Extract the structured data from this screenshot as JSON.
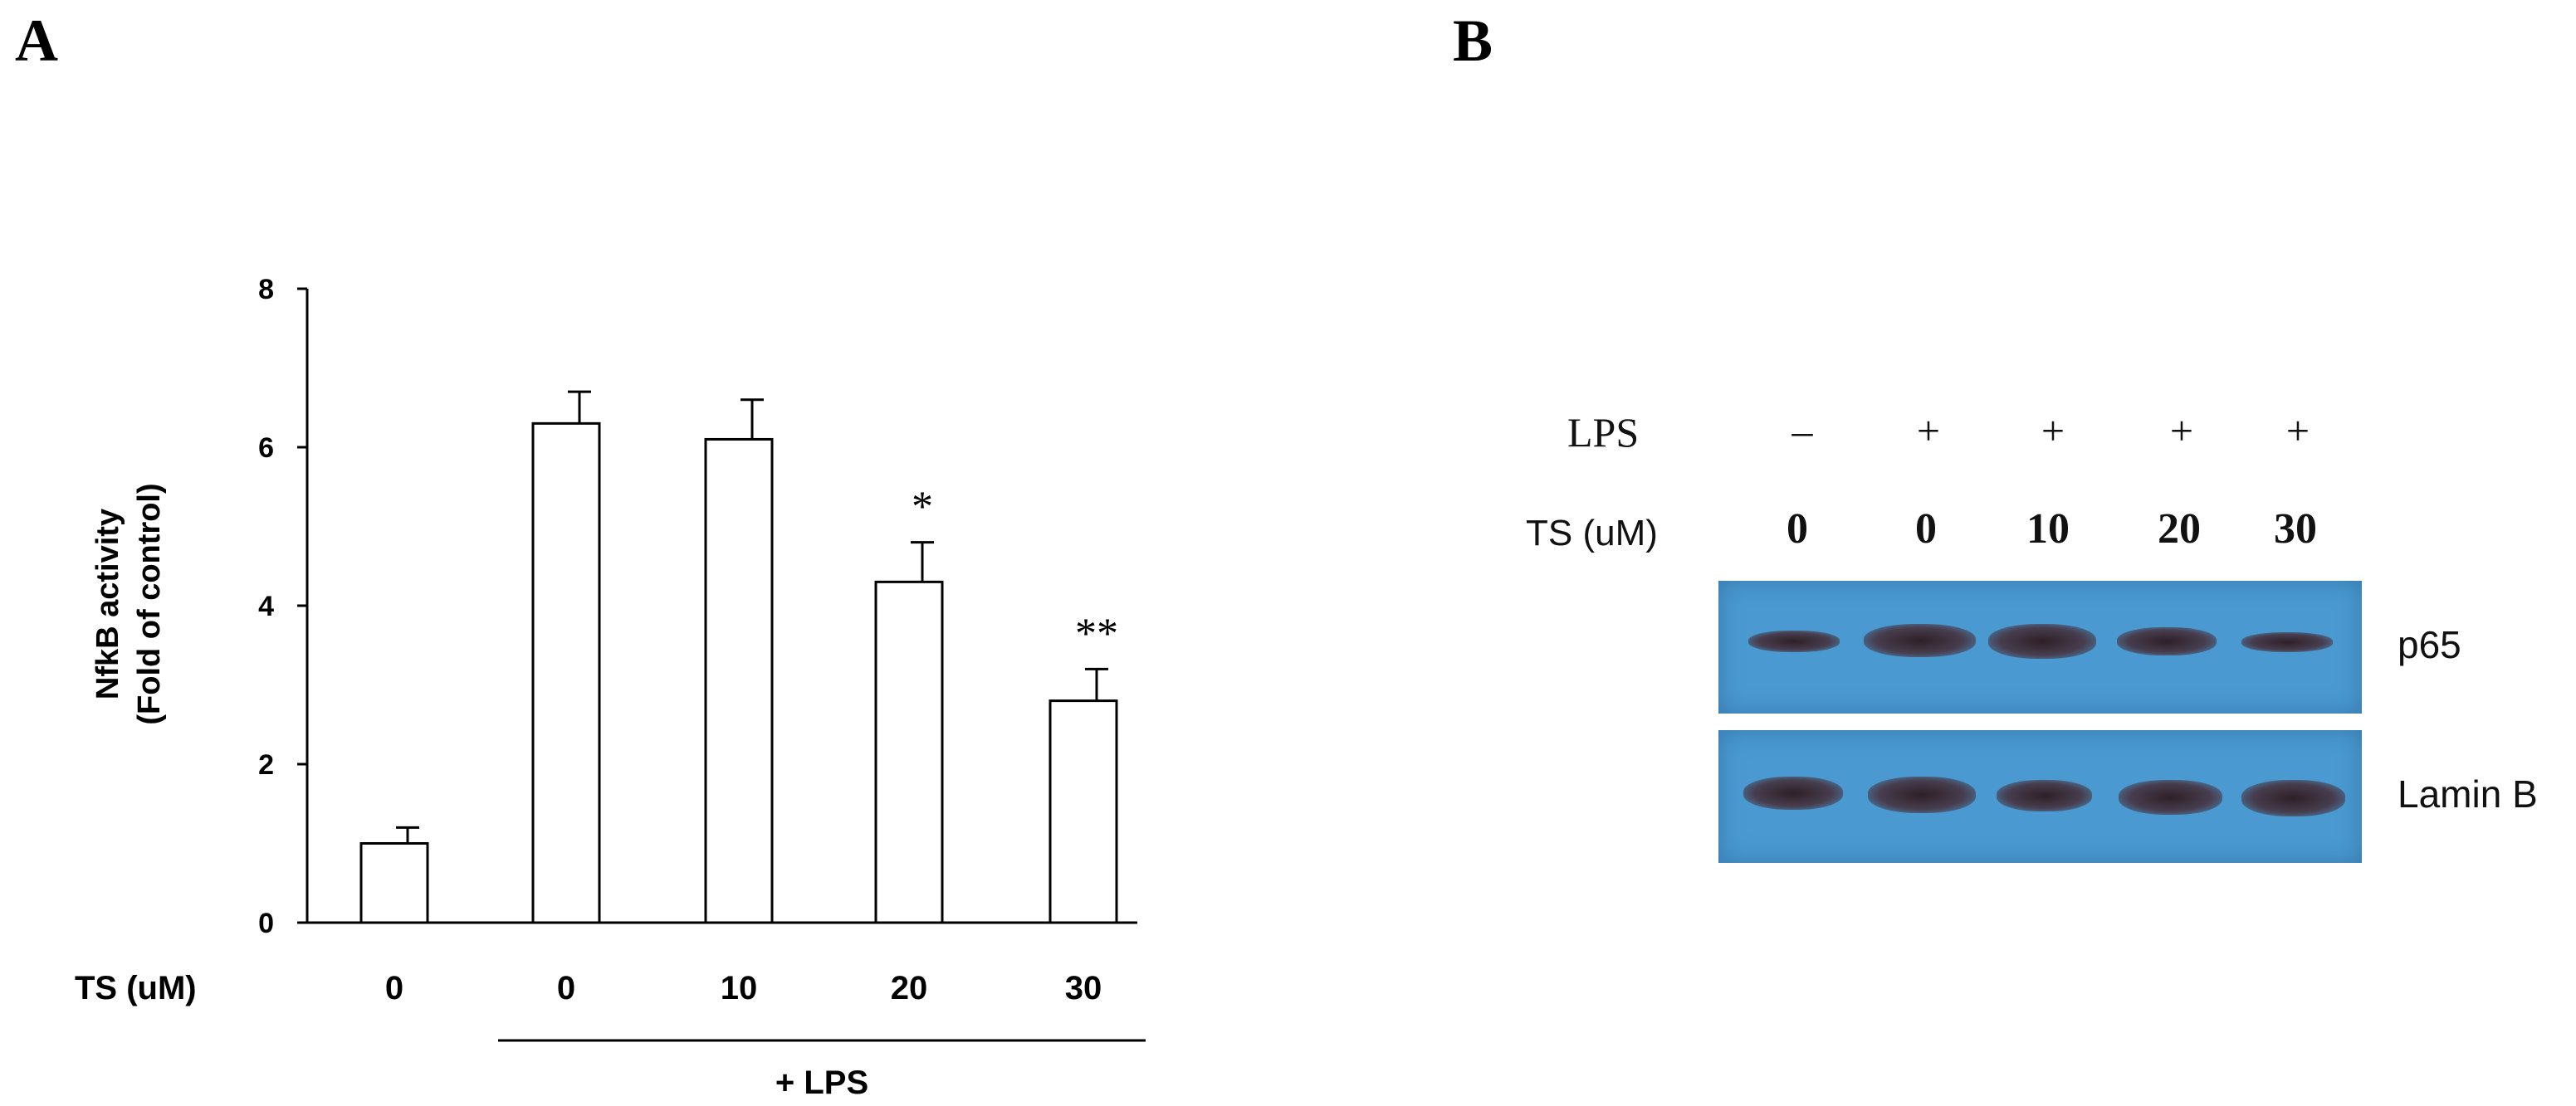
{
  "panels": {
    "a_label": "A",
    "b_label": "B"
  },
  "chart_data": {
    "type": "bar",
    "categories": [
      "0",
      "0",
      "10",
      "20",
      "30"
    ],
    "values": [
      1.0,
      6.3,
      6.1,
      4.3,
      2.8
    ],
    "errors": [
      0.2,
      0.4,
      0.5,
      0.5,
      0.4
    ],
    "annotations": [
      "",
      "",
      "",
      "*",
      "**"
    ],
    "ylabel_line1": "NfkB activity",
    "ylabel_line2": "(Fold of control)",
    "xlabel": "TS (uM)",
    "group_label": "+ LPS",
    "ylim": [
      0,
      8
    ],
    "yticks": [
      0,
      2,
      4,
      6,
      8
    ],
    "bar_color": "#ffffff",
    "edge_color": "#000000"
  },
  "blot": {
    "row1_label": "LPS",
    "row2_label": "TS (uM)",
    "lps": [
      "–",
      "+",
      "+",
      "+",
      "+"
    ],
    "ts": [
      "0",
      "0",
      "10",
      "20",
      "30"
    ],
    "band_labels": [
      "p65",
      "Lamin B"
    ],
    "membrane_color": "#4a9ad1"
  }
}
